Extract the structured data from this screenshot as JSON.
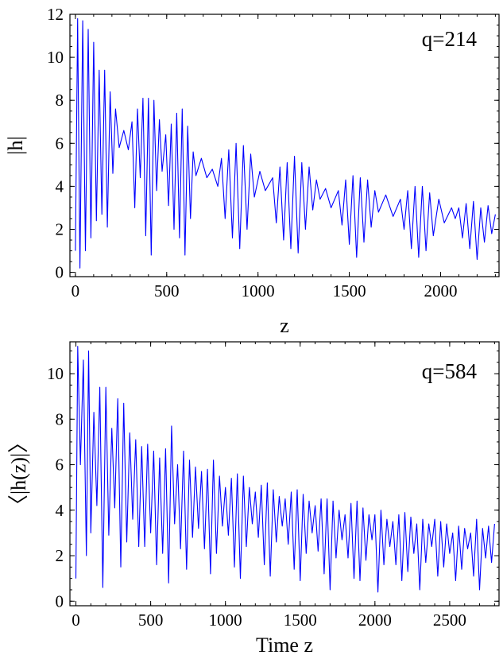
{
  "chart_data": [
    {
      "type": "line",
      "annotation": "q=214",
      "xlabel": "z",
      "ylabel": "|h|",
      "xlim": [
        -30,
        2320
      ],
      "ylim": [
        -0.2,
        12
      ],
      "xticks": [
        0,
        500,
        1000,
        1500,
        2000
      ],
      "yticks": [
        0,
        2,
        4,
        6,
        8,
        10,
        12
      ],
      "grid": false,
      "legend": "none",
      "color": "#0000ff",
      "series": [
        {
          "x": [
            0,
            12,
            25,
            40,
            55,
            70,
            85,
            100,
            115,
            130,
            145,
            160,
            175,
            190,
            205,
            220,
            240,
            265,
            290,
            310,
            325,
            340,
            355,
            370,
            385,
            400,
            415,
            430,
            445,
            460,
            475,
            495,
            510,
            525,
            540,
            555,
            570,
            585,
            600,
            615,
            630,
            645,
            660,
            690,
            720,
            750,
            780,
            800,
            820,
            840,
            860,
            880,
            900,
            920,
            940,
            960,
            980,
            1010,
            1040,
            1080,
            1100,
            1120,
            1140,
            1160,
            1180,
            1200,
            1220,
            1240,
            1260,
            1280,
            1300,
            1320,
            1340,
            1370,
            1400,
            1440,
            1460,
            1480,
            1500,
            1520,
            1540,
            1560,
            1580,
            1600,
            1620,
            1640,
            1660,
            1700,
            1740,
            1780,
            1800,
            1820,
            1840,
            1860,
            1880,
            1900,
            1920,
            1940,
            1960,
            1990,
            2020,
            2060,
            2080,
            2100,
            2120,
            2140,
            2160,
            2180,
            2200,
            2220,
            2240,
            2260,
            2280,
            2300
          ],
          "y": [
            1.0,
            11.8,
            0.2,
            11.7,
            1.0,
            11.3,
            1.6,
            10.7,
            2.4,
            9.4,
            2.7,
            9.4,
            2.1,
            8.4,
            4.6,
            7.6,
            5.8,
            6.6,
            5.7,
            7.0,
            3.0,
            7.6,
            4.4,
            8.1,
            1.7,
            8.1,
            0.8,
            8.0,
            3.8,
            7.1,
            4.7,
            6.4,
            3.1,
            6.9,
            2.0,
            7.4,
            1.6,
            7.6,
            0.8,
            6.8,
            2.5,
            5.6,
            4.5,
            5.3,
            4.4,
            4.8,
            4.0,
            5.3,
            2.5,
            5.7,
            1.6,
            6.0,
            1.1,
            5.9,
            2.0,
            5.5,
            3.5,
            4.7,
            3.8,
            4.4,
            2.3,
            4.9,
            1.5,
            5.1,
            1.1,
            5.4,
            0.9,
            5.1,
            2.0,
            4.9,
            2.9,
            4.3,
            3.4,
            3.9,
            3.0,
            3.8,
            2.2,
            4.3,
            1.3,
            4.5,
            0.7,
            4.4,
            1.4,
            4.3,
            2.1,
            3.8,
            2.8,
            3.6,
            2.6,
            3.4,
            2.0,
            3.8,
            1.1,
            4.0,
            0.7,
            4.0,
            1.0,
            3.7,
            1.7,
            3.4,
            2.3,
            3.0,
            2.5,
            3.0,
            1.6,
            3.2,
            1.1,
            3.3,
            0.6,
            3.0,
            1.4,
            3.1,
            1.8,
            2.7
          ]
        }
      ]
    },
    {
      "type": "line",
      "annotation": "q=584",
      "xlabel": "Time z",
      "ylabel": "〈|h(z)|〉",
      "xlim": [
        -40,
        2830
      ],
      "ylim": [
        -0.2,
        11.4
      ],
      "xticks": [
        0,
        500,
        1000,
        1500,
        2000,
        2500
      ],
      "yticks": [
        0,
        2,
        4,
        6,
        8,
        10
      ],
      "grid": false,
      "legend": "none",
      "color": "#0000ff",
      "series": [
        {
          "x": [
            0,
            12,
            30,
            50,
            70,
            85,
            100,
            120,
            140,
            160,
            180,
            200,
            220,
            240,
            260,
            280,
            300,
            320,
            340,
            360,
            380,
            400,
            420,
            440,
            460,
            480,
            500,
            520,
            540,
            560,
            580,
            600,
            620,
            640,
            660,
            680,
            700,
            720,
            740,
            760,
            780,
            800,
            820,
            840,
            860,
            880,
            900,
            920,
            940,
            960,
            980,
            1000,
            1020,
            1040,
            1060,
            1080,
            1100,
            1120,
            1140,
            1160,
            1180,
            1200,
            1220,
            1240,
            1260,
            1280,
            1300,
            1320,
            1340,
            1360,
            1380,
            1400,
            1420,
            1440,
            1460,
            1480,
            1500,
            1520,
            1540,
            1560,
            1580,
            1600,
            1620,
            1640,
            1660,
            1680,
            1700,
            1720,
            1740,
            1760,
            1780,
            1800,
            1820,
            1840,
            1860,
            1880,
            1900,
            1920,
            1940,
            1960,
            1980,
            2000,
            2020,
            2040,
            2060,
            2080,
            2100,
            2120,
            2140,
            2160,
            2180,
            2200,
            2220,
            2240,
            2260,
            2280,
            2300,
            2320,
            2340,
            2360,
            2380,
            2400,
            2420,
            2440,
            2460,
            2480,
            2500,
            2520,
            2540,
            2560,
            2580,
            2600,
            2620,
            2640,
            2660,
            2680,
            2700,
            2720,
            2740,
            2760,
            2780,
            2800
          ],
          "y": [
            1.0,
            11.2,
            6.0,
            10.6,
            2.0,
            11.0,
            3.0,
            8.3,
            4.2,
            9.4,
            0.6,
            9.4,
            2.9,
            7.6,
            4.1,
            8.9,
            1.5,
            8.7,
            2.6,
            7.4,
            3.6,
            7.1,
            2.4,
            6.8,
            2.4,
            6.9,
            3.0,
            6.6,
            1.6,
            6.3,
            2.1,
            6.7,
            0.8,
            7.7,
            3.4,
            6.0,
            2.3,
            6.6,
            1.4,
            6.2,
            2.8,
            5.9,
            3.2,
            5.7,
            2.3,
            5.8,
            1.2,
            6.2,
            2.1,
            5.5,
            3.3,
            5.0,
            2.9,
            5.4,
            1.5,
            5.6,
            1.0,
            5.5,
            2.4,
            5.0,
            3.4,
            4.8,
            2.8,
            5.1,
            1.6,
            5.2,
            1.1,
            4.9,
            2.6,
            4.6,
            3.3,
            4.5,
            2.5,
            4.8,
            1.4,
            4.9,
            0.9,
            4.7,
            2.1,
            4.4,
            3.0,
            4.2,
            2.2,
            4.5,
            1.2,
            4.5,
            0.5,
            4.4,
            1.9,
            4.0,
            2.7,
            3.8,
            1.9,
            4.3,
            1.0,
            4.4,
            0.9,
            4.1,
            1.8,
            3.8,
            2.7,
            3.8,
            0.4,
            4.0,
            1.6,
            3.6,
            2.4,
            3.5,
            1.6,
            3.8,
            0.9,
            3.9,
            1.3,
            3.7,
            2.1,
            3.4,
            0.5,
            3.6,
            1.7,
            3.4,
            2.4,
            3.6,
            1.1,
            3.5,
            1.5,
            3.4,
            2.1,
            3.0,
            0.9,
            3.3,
            1.4,
            3.2,
            2.3,
            3.0,
            1.1,
            3.6,
            0.5,
            3.2,
            1.9,
            3.3,
            1.7,
            3.4
          ]
        }
      ]
    }
  ]
}
